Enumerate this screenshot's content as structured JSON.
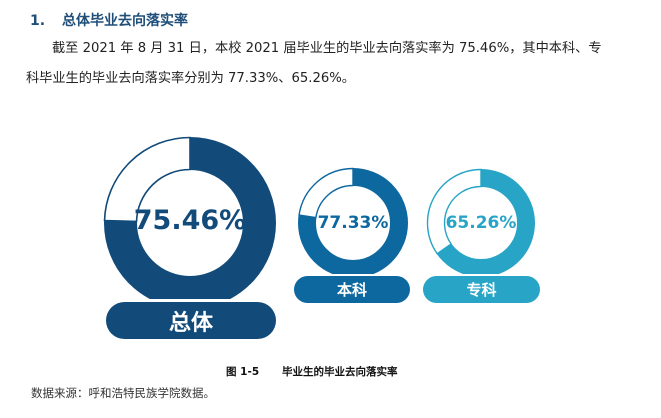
{
  "section": {
    "number": "1.",
    "title": "总体毕业去向落实率"
  },
  "paragraph": {
    "line1": "截至 2021 年 8 月 31 日，本校 2021 届毕业生的毕业去向落实率为 75.46%，其中本科、专",
    "line2": "科毕业生的毕业去向落实率分别为 77.33%、65.26%。"
  },
  "chart_data": {
    "type": "pie",
    "subtype": "donut",
    "title": "毕业生的毕业去向落实率",
    "figure_label": "图 1-5",
    "categories": [
      "总体",
      "本科",
      "专科"
    ],
    "values": [
      75.46,
      77.33,
      65.26
    ],
    "value_labels": [
      "75.46%",
      "77.33%",
      "65.26%"
    ],
    "unit": "%",
    "colors": [
      "#124b7a",
      "#0e68a0",
      "#27a4c6"
    ]
  },
  "donuts": [
    {
      "label": "总体",
      "value_text": "75.46%",
      "color": "#124b7a"
    },
    {
      "label": "本科",
      "value_text": "77.33%",
      "color": "#0e68a0"
    },
    {
      "label": "专科",
      "value_text": "65.26%",
      "color": "#27a4c6"
    }
  ],
  "caption": {
    "figure": "图 1-5",
    "title": "毕业生的毕业去向落实率"
  },
  "source": "数据来源：呼和浩特民族学院数据。"
}
